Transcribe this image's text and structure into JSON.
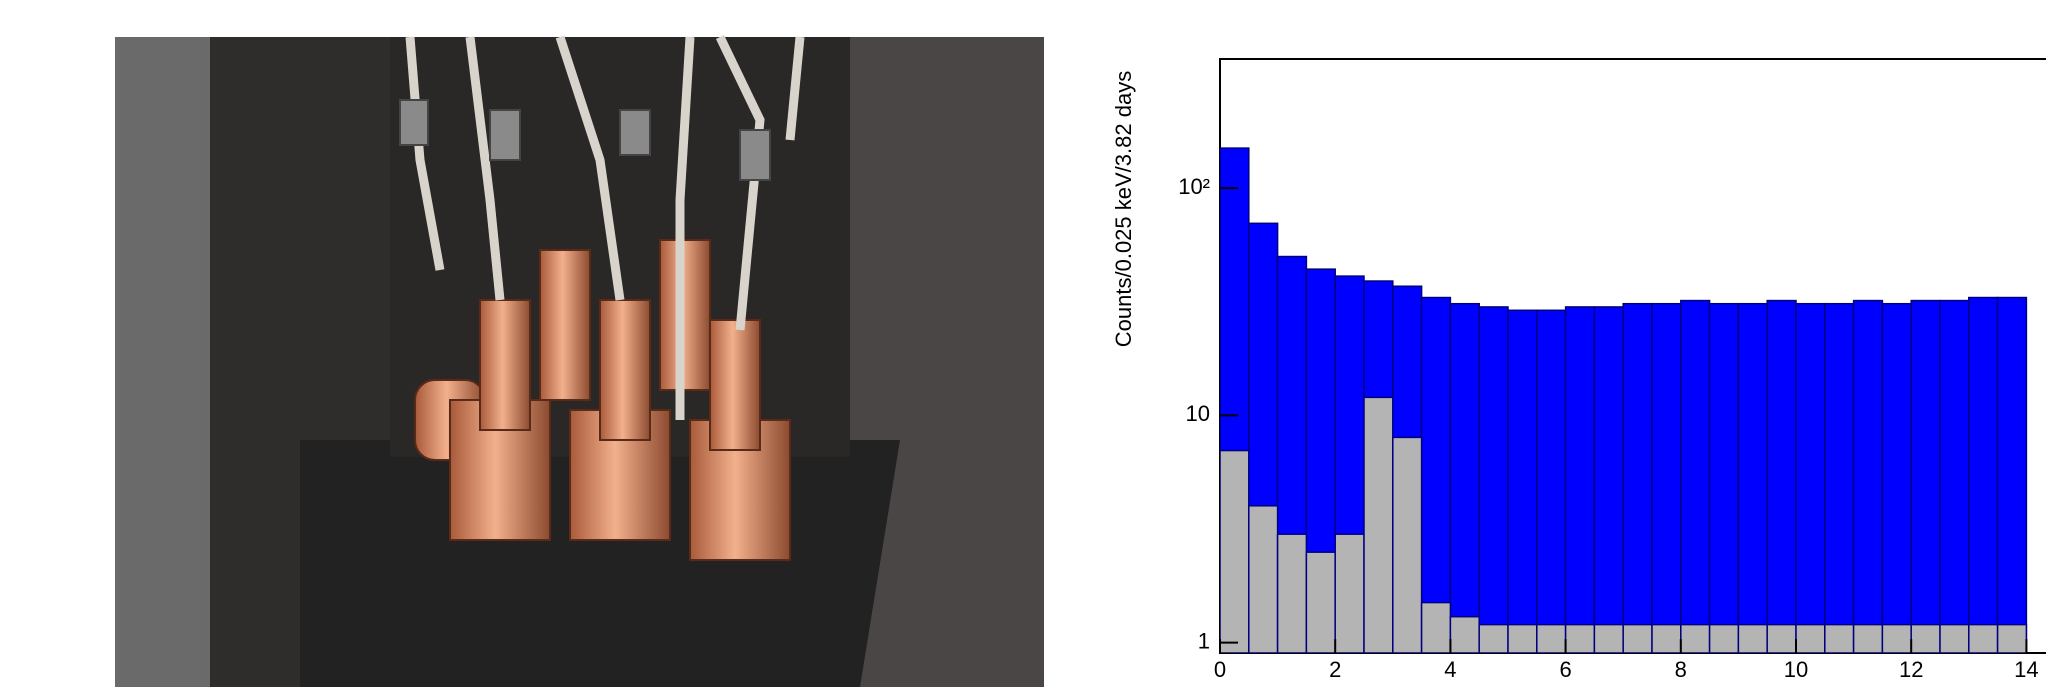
{
  "chart_data": {
    "type": "histogram",
    "y_label": "Counts/0.025 keV/3.82 days",
    "bins": [
      0,
      0.5,
      1,
      1.5,
      2,
      2.5,
      3,
      3.5,
      4,
      4.5,
      5,
      5.5,
      6,
      6.5,
      7,
      7.5,
      8,
      8.5,
      9,
      9.5,
      10,
      10.5,
      11,
      11.5,
      12,
      12.5,
      13,
      13.5,
      14
    ],
    "series": [
      {
        "color": "#0000ff",
        "edge": "#000080",
        "values": [
          150,
          70,
          50,
          44,
          41,
          39,
          37,
          33,
          31,
          30,
          29,
          29,
          30,
          30,
          31,
          31,
          32,
          31,
          31,
          32,
          31,
          31,
          32,
          31,
          32,
          32,
          33,
          33
        ]
      },
      {
        "color": "#b4b4b4",
        "edge": "#000080",
        "values": [
          7,
          4,
          3,
          2.5,
          3,
          12,
          8,
          1.5,
          1.3,
          1.2,
          1.2,
          1.2,
          1.2,
          1.2,
          1.2,
          1.2,
          1.2,
          1.2,
          1.2,
          1.2,
          1.2,
          1.2,
          1.2,
          1.2,
          1.2,
          1.2,
          1.2,
          1.2
        ]
      }
    ],
    "xlim": [
      0,
      14.35
    ],
    "ylim": [
      0.9,
      370
    ],
    "log_y": true,
    "xticks": [
      0,
      2,
      4,
      6,
      8,
      10,
      12,
      14
    ],
    "yticks": [
      1,
      10,
      {
        "value": 100,
        "label": "10²"
      }
    ]
  }
}
